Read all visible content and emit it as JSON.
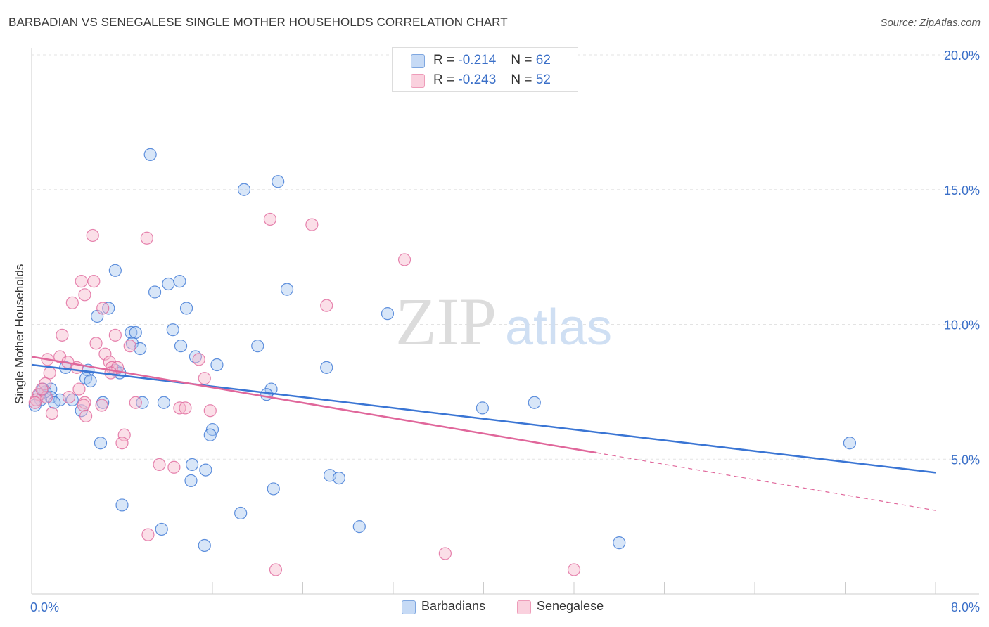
{
  "header": {
    "title": "BARBADIAN VS SENEGALESE SINGLE MOTHER HOUSEHOLDS CORRELATION CHART",
    "source": "Source: ZipAtlas.com"
  },
  "watermark": {
    "zip": "ZIP",
    "atlas": "atlas"
  },
  "legend_top": [
    {
      "r_label": "R =",
      "r_value": "-0.214",
      "n_label": "N =",
      "n_value": "62",
      "color": "#a9c8f0"
    },
    {
      "r_label": "R =",
      "r_value": "-0.243",
      "n_label": "N =",
      "n_value": "52",
      "color": "#f7b8cc"
    }
  ],
  "legend_bottom": [
    {
      "label": "Barbadians",
      "color": "#a9c8f0"
    },
    {
      "label": "Senegalese",
      "color": "#f7b8cc"
    }
  ],
  "chart_data": {
    "type": "scatter",
    "title": "BARBADIAN VS SENEGALESE SINGLE MOTHER HOUSEHOLDS CORRELATION CHART",
    "xlabel": "",
    "ylabel": "Single Mother Households",
    "xlim": [
      0,
      8
    ],
    "ylim": [
      0,
      20
    ],
    "x_tick_labels": [
      {
        "value": 0,
        "label": "0.0%"
      },
      {
        "value": 8,
        "label": "8.0%"
      }
    ],
    "y_tick_labels": [
      {
        "value": 5,
        "label": "5.0%"
      },
      {
        "value": 10,
        "label": "10.0%"
      },
      {
        "value": 15,
        "label": "15.0%"
      },
      {
        "value": 20,
        "label": "20.0%"
      }
    ],
    "grid": true,
    "legend_position": "top-center",
    "series": [
      {
        "name": "Barbadians",
        "color": "#3a75d4",
        "fill": "#a9c8f0",
        "points": [
          [
            1.05,
            16.3
          ],
          [
            1.88,
            15.0
          ],
          [
            2.18,
            15.3
          ],
          [
            0.74,
            12.0
          ],
          [
            1.21,
            11.5
          ],
          [
            1.31,
            11.6
          ],
          [
            1.09,
            11.2
          ],
          [
            2.26,
            11.3
          ],
          [
            0.68,
            10.6
          ],
          [
            1.37,
            10.6
          ],
          [
            0.58,
            10.3
          ],
          [
            3.15,
            10.4
          ],
          [
            1.25,
            9.8
          ],
          [
            0.88,
            9.7
          ],
          [
            0.92,
            9.7
          ],
          [
            0.89,
            9.3
          ],
          [
            0.96,
            9.1
          ],
          [
            1.32,
            9.2
          ],
          [
            2.0,
            9.2
          ],
          [
            1.45,
            8.8
          ],
          [
            1.64,
            8.5
          ],
          [
            2.61,
            8.4
          ],
          [
            0.5,
            8.3
          ],
          [
            0.74,
            8.3
          ],
          [
            0.78,
            8.2
          ],
          [
            0.48,
            8.0
          ],
          [
            0.52,
            7.9
          ],
          [
            0.17,
            7.6
          ],
          [
            2.12,
            7.6
          ],
          [
            2.08,
            7.4
          ],
          [
            0.07,
            7.4
          ],
          [
            0.17,
            7.3
          ],
          [
            0.12,
            7.5
          ],
          [
            0.08,
            7.2
          ],
          [
            0.25,
            7.2
          ],
          [
            0.44,
            6.8
          ],
          [
            0.63,
            7.1
          ],
          [
            0.98,
            7.1
          ],
          [
            1.17,
            7.1
          ],
          [
            3.99,
            6.9
          ],
          [
            4.45,
            7.1
          ],
          [
            1.6,
            6.1
          ],
          [
            1.58,
            5.9
          ],
          [
            0.61,
            5.6
          ],
          [
            7.24,
            5.6
          ],
          [
            1.42,
            4.8
          ],
          [
            1.54,
            4.6
          ],
          [
            2.64,
            4.4
          ],
          [
            2.72,
            4.3
          ],
          [
            1.41,
            4.2
          ],
          [
            2.14,
            3.9
          ],
          [
            0.8,
            3.3
          ],
          [
            1.85,
            3.0
          ],
          [
            2.9,
            2.5
          ],
          [
            1.15,
            2.4
          ],
          [
            1.53,
            1.8
          ],
          [
            5.2,
            1.9
          ],
          [
            0.03,
            7.0
          ],
          [
            0.1,
            7.6
          ],
          [
            0.36,
            7.2
          ],
          [
            0.3,
            8.4
          ],
          [
            0.2,
            7.1
          ]
        ]
      },
      {
        "name": "Senegalese",
        "color": "#e0679b",
        "fill": "#f7b8cc",
        "points": [
          [
            2.11,
            13.9
          ],
          [
            2.48,
            13.7
          ],
          [
            0.54,
            13.3
          ],
          [
            1.02,
            13.2
          ],
          [
            3.3,
            12.4
          ],
          [
            0.44,
            11.6
          ],
          [
            0.55,
            11.6
          ],
          [
            0.47,
            11.1
          ],
          [
            0.36,
            10.8
          ],
          [
            2.61,
            10.7
          ],
          [
            0.63,
            10.6
          ],
          [
            0.27,
            9.6
          ],
          [
            0.74,
            9.6
          ],
          [
            0.57,
            9.3
          ],
          [
            0.87,
            9.2
          ],
          [
            0.65,
            8.9
          ],
          [
            0.25,
            8.8
          ],
          [
            0.14,
            8.7
          ],
          [
            1.48,
            8.7
          ],
          [
            0.69,
            8.6
          ],
          [
            0.32,
            8.6
          ],
          [
            0.4,
            8.4
          ],
          [
            0.71,
            8.4
          ],
          [
            0.76,
            8.4
          ],
          [
            0.16,
            8.2
          ],
          [
            0.7,
            8.2
          ],
          [
            1.53,
            8.0
          ],
          [
            0.12,
            7.8
          ],
          [
            0.42,
            7.6
          ],
          [
            0.06,
            7.4
          ],
          [
            0.13,
            7.3
          ],
          [
            0.33,
            7.3
          ],
          [
            0.04,
            7.2
          ],
          [
            0.47,
            7.1
          ],
          [
            0.92,
            7.1
          ],
          [
            1.31,
            6.9
          ],
          [
            1.36,
            6.9
          ],
          [
            0.46,
            7.0
          ],
          [
            1.58,
            6.8
          ],
          [
            0.18,
            6.7
          ],
          [
            0.48,
            6.6
          ],
          [
            0.82,
            5.9
          ],
          [
            0.8,
            5.6
          ],
          [
            1.13,
            4.8
          ],
          [
            1.26,
            4.7
          ],
          [
            1.03,
            2.2
          ],
          [
            3.66,
            1.5
          ],
          [
            4.8,
            0.9
          ],
          [
            2.16,
            0.9
          ],
          [
            0.03,
            7.1
          ],
          [
            0.09,
            7.6
          ],
          [
            0.62,
            7.0
          ]
        ]
      }
    ],
    "trend_lines": [
      {
        "series": "Barbadians",
        "x": [
          0,
          8
        ],
        "y": [
          8.5,
          4.5
        ],
        "dashed_from": null
      },
      {
        "series": "Senegalese",
        "x": [
          0,
          8
        ],
        "y": [
          8.8,
          3.1
        ],
        "dashed_from": 5.0
      }
    ]
  }
}
